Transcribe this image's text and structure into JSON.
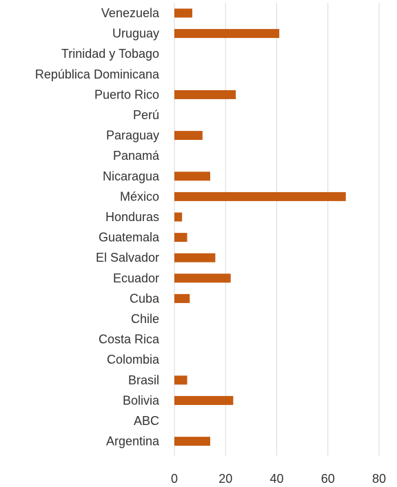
{
  "chart_data": {
    "type": "bar",
    "orientation": "horizontal",
    "categories": [
      "Venezuela",
      "Uruguay",
      "Trinidad y Tobago",
      "República Dominicana",
      "Puerto Rico",
      "Perú",
      "Paraguay",
      "Panamá",
      "Nicaragua",
      "México",
      "Honduras",
      "Guatemala",
      "El Salvador",
      "Ecuador",
      "Cuba",
      "Chile",
      "Costa Rica",
      "Colombia",
      "Brasil",
      "Bolivia",
      "ABC",
      "Argentina"
    ],
    "values": [
      7,
      41,
      0,
      0,
      24,
      0,
      11,
      0,
      14,
      67,
      3,
      5,
      16,
      22,
      6,
      0,
      0,
      0,
      5,
      23,
      0,
      14
    ],
    "x_ticks": [
      0,
      20,
      40,
      60,
      80
    ],
    "xlim": [
      0,
      80
    ],
    "grid": true,
    "bar_color": "#C55A11",
    "title": "",
    "xlabel": "",
    "ylabel": ""
  }
}
